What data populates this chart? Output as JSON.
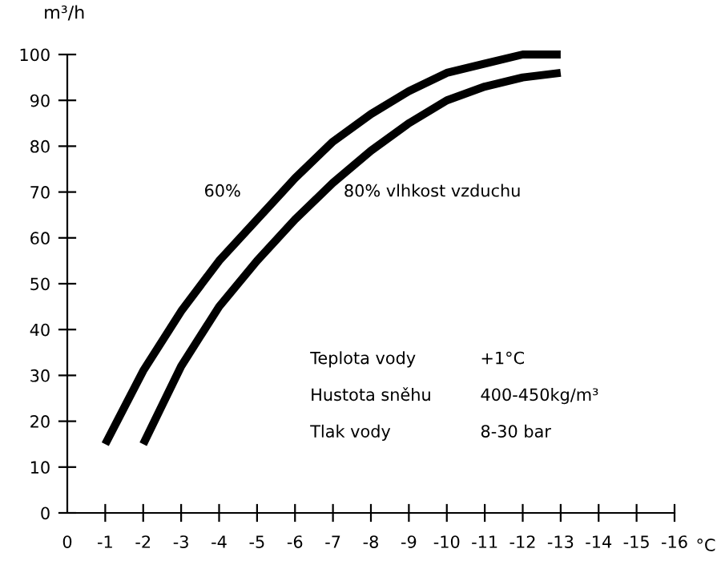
{
  "chart_data": {
    "type": "line",
    "ylabel": "m³/h",
    "xlabel": "°C",
    "x": [
      -1,
      -2,
      -3,
      -4,
      -5,
      -6,
      -7,
      -8,
      -9,
      -10,
      -11,
      -12,
      -13
    ],
    "series": [
      {
        "name": "60%",
        "color": "#000000",
        "values": [
          15,
          31,
          44,
          55,
          64,
          73,
          81,
          87,
          92,
          96,
          98,
          100,
          100
        ]
      },
      {
        "name": "80% vlhkost vzduchu",
        "color": "#000000",
        "x": [
          -2,
          -3,
          -4,
          -5,
          -6,
          -7,
          -8,
          -9,
          -10,
          -11,
          -12,
          -13
        ],
        "values": [
          15,
          32,
          45,
          55,
          64,
          72,
          79,
          85,
          90,
          93,
          95,
          96
        ]
      }
    ],
    "xlim": [
      0,
      -16
    ],
    "xticks": [
      0,
      -1,
      -2,
      -3,
      -4,
      -5,
      -6,
      -7,
      -8,
      -9,
      -10,
      -11,
      -12,
      -13,
      -14,
      -15,
      -16
    ],
    "ylim": [
      0,
      100
    ],
    "yticks": [
      0,
      10,
      20,
      30,
      40,
      50,
      60,
      70,
      80,
      90,
      100
    ],
    "annotations": [
      "Teplota vody",
      "+1°C",
      "Hustota sněhu",
      "400-450kg/m³",
      "Tlak vody",
      "8-30 bar"
    ],
    "grid": false,
    "legend": false,
    "marker": "none",
    "line_style": "solid"
  }
}
